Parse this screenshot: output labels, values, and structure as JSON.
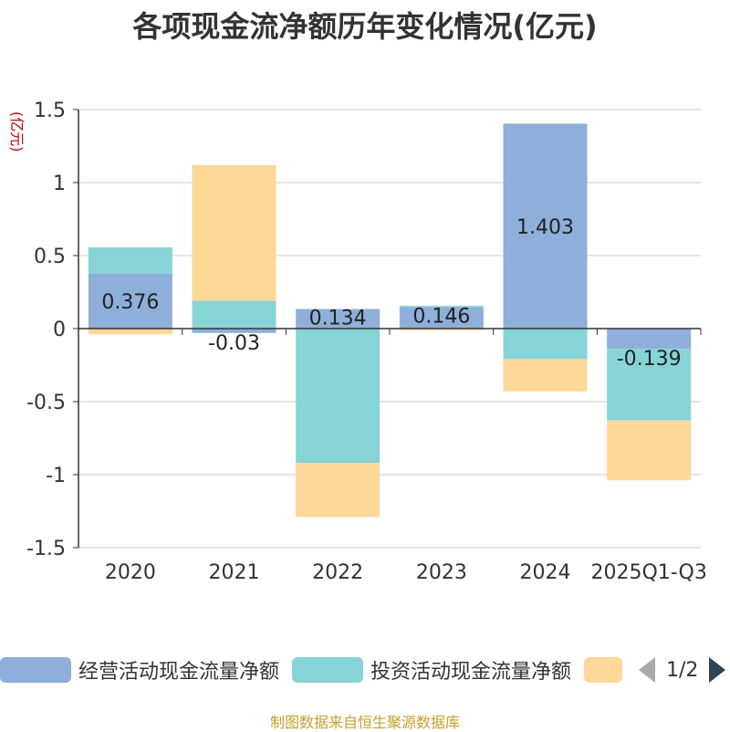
{
  "title": "各项现金流净额历年变化情况(亿元)",
  "y_unit": "(亿元)",
  "source": "制图数据来自恒生聚源数据库",
  "legend": {
    "items": [
      {
        "label": "经营活动现金流量净额",
        "color": "#8eafd9"
      },
      {
        "label": "投资活动现金流量净额",
        "color": "#87d4d6"
      },
      {
        "label": "",
        "color": "#fdd898"
      }
    ],
    "page": "1/2"
  },
  "chart_data": {
    "type": "bar",
    "stacked": true,
    "categories": [
      "2020",
      "2021",
      "2022",
      "2023",
      "2024",
      "2025Q1-Q3"
    ],
    "series": [
      {
        "name": "经营活动现金流量净额",
        "color": "#8eafd9",
        "values": [
          0.376,
          -0.03,
          0.134,
          0.146,
          1.403,
          -0.139
        ]
      },
      {
        "name": "投资活动现金流量净额",
        "color": "#87d4d6",
        "values": [
          0.18,
          0.19,
          -0.92,
          0.01,
          -0.21,
          -0.49
        ]
      },
      {
        "color": "#fdd898",
        "values": [
          -0.04,
          0.93,
          -0.37,
          -0.01,
          -0.22,
          -0.41
        ]
      }
    ],
    "data_labels": [
      "0.376",
      "-0.03",
      "0.134",
      "0.146",
      "1.403",
      "-0.139"
    ],
    "y_ticks": [
      "1.5",
      "1",
      "0.5",
      "0",
      "-0.5",
      "-1",
      "-1.5"
    ],
    "ylim": [
      -1.5,
      1.5
    ],
    "grid": true,
    "legend_position": "bottom"
  }
}
